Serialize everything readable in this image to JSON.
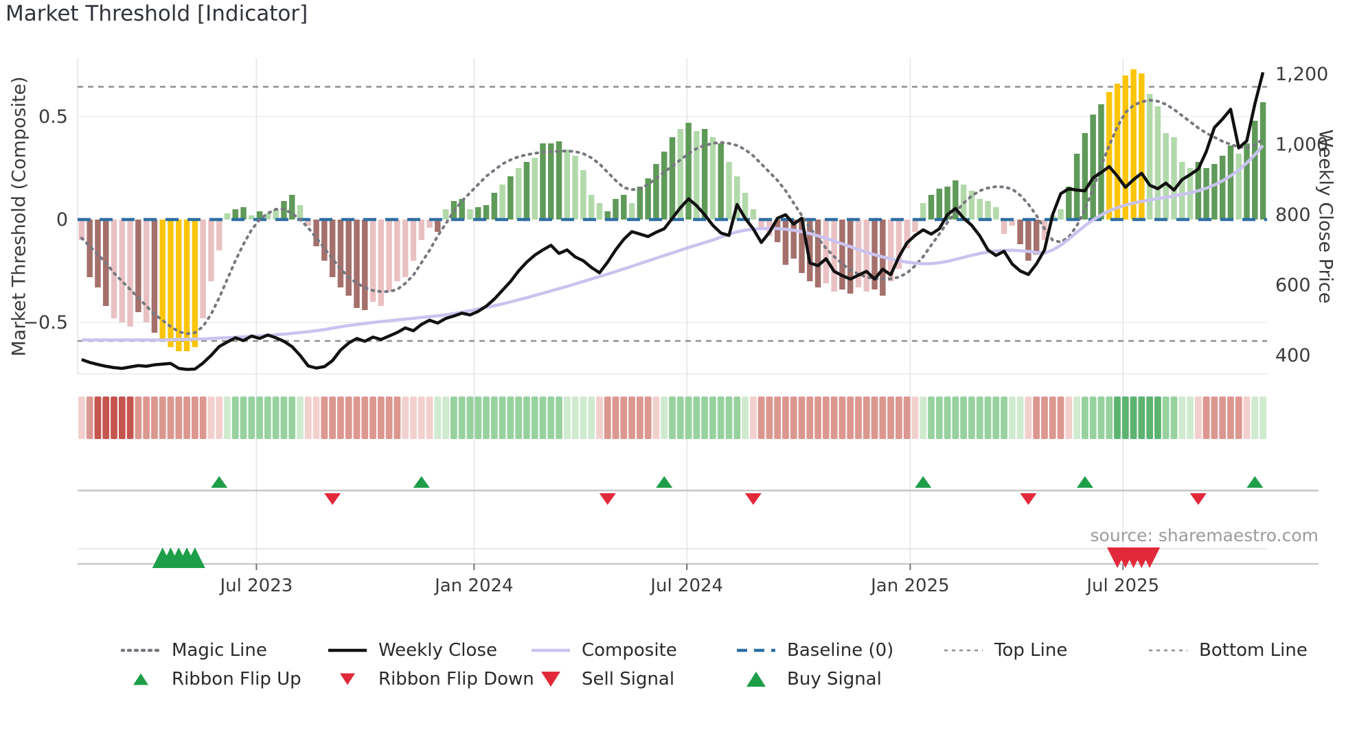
{
  "page": {
    "title": "Market Threshold [Indicator]",
    "source": "source: sharemaestro.com"
  },
  "chart_data": {
    "type": "combo",
    "title": "Market Threshold [Indicator]",
    "left_axis": {
      "label": "Market Threshold (Composite)",
      "ticks": [
        0.5,
        0,
        -0.5
      ],
      "tick_labels": [
        "0.5",
        "0",
        "−0.5"
      ],
      "range": [
        -0.75,
        0.78
      ],
      "grid": [
        0.5,
        -0.5
      ]
    },
    "right_axis": {
      "label": "Weekly Close Price",
      "ticks": [
        1200,
        1000,
        800,
        600,
        400
      ],
      "tick_labels": [
        "1,200",
        "1,000",
        "800",
        "600",
        "400"
      ],
      "range": [
        345,
        1250
      ]
    },
    "x_axis": {
      "tick_labels": [
        "Jul 2023",
        "Jan 2024",
        "Jul 2024",
        "Jan 2025",
        "Jul 2025"
      ],
      "tick_indices": [
        22.1,
        49.0,
        75.3,
        102.9,
        129.2
      ],
      "n_points": 147,
      "grid": true
    },
    "thresholds": {
      "baseline": 0,
      "top_line": 0.645,
      "bottom_line": -0.59
    },
    "histogram": {
      "name": "Market Threshold (Composite) histogram",
      "values": [
        -0.1,
        -0.28,
        -0.33,
        -0.42,
        -0.48,
        -0.5,
        -0.52,
        -0.45,
        -0.5,
        -0.55,
        -0.58,
        -0.62,
        -0.64,
        -0.64,
        -0.62,
        -0.48,
        -0.3,
        -0.15,
        0.03,
        0.05,
        0.06,
        0.02,
        0.04,
        0.03,
        0.05,
        0.09,
        0.12,
        0.07,
        -0.03,
        -0.13,
        -0.2,
        -0.28,
        -0.33,
        -0.37,
        -0.43,
        -0.44,
        -0.4,
        -0.42,
        -0.35,
        -0.3,
        -0.28,
        -0.2,
        -0.1,
        -0.04,
        -0.06,
        0.05,
        0.09,
        0.1,
        0.05,
        0.06,
        0.07,
        0.13,
        0.17,
        0.21,
        0.25,
        0.28,
        0.3,
        0.37,
        0.37,
        0.38,
        0.34,
        0.31,
        0.24,
        0.12,
        0.08,
        0.04,
        0.1,
        0.12,
        0.08,
        0.16,
        0.2,
        0.27,
        0.33,
        0.4,
        0.44,
        0.47,
        0.43,
        0.44,
        0.4,
        0.37,
        0.28,
        0.21,
        0.13,
        0.05,
        -0.04,
        -0.08,
        -0.11,
        -0.22,
        -0.19,
        -0.26,
        -0.3,
        -0.33,
        -0.31,
        -0.35,
        -0.34,
        -0.36,
        -0.33,
        -0.35,
        -0.34,
        -0.37,
        -0.3,
        -0.24,
        -0.14,
        -0.06,
        0.08,
        0.12,
        0.15,
        0.16,
        0.19,
        0.17,
        0.14,
        0.1,
        0.09,
        0.06,
        -0.07,
        -0.03,
        -0.12,
        -0.2,
        -0.17,
        -0.1,
        0.02,
        0.05,
        0.16,
        0.32,
        0.42,
        0.51,
        0.56,
        0.62,
        0.66,
        0.7,
        0.73,
        0.71,
        0.61,
        0.55,
        0.42,
        0.4,
        0.28,
        0.25,
        0.28,
        0.25,
        0.27,
        0.31,
        0.36,
        0.32,
        0.37,
        0.48,
        0.57
      ],
      "shades": [
        "l",
        "d",
        "d",
        "d",
        "l",
        "l",
        "l",
        "d",
        "l",
        "d",
        "y",
        "y",
        "y",
        "y",
        "y",
        "l",
        "l",
        "l",
        "l",
        "d",
        "d",
        "l",
        "d",
        "l",
        "l",
        "d",
        "d",
        "l",
        "l",
        "d",
        "d",
        "d",
        "d",
        "d",
        "d",
        "d",
        "l",
        "l",
        "l",
        "l",
        "l",
        "l",
        "l",
        "l",
        "d",
        "l",
        "d",
        "d",
        "l",
        "d",
        "d",
        "d",
        "l",
        "d",
        "l",
        "d",
        "l",
        "d",
        "d",
        "d",
        "l",
        "l",
        "l",
        "l",
        "l",
        "d",
        "d",
        "d",
        "l",
        "d",
        "d",
        "d",
        "d",
        "d",
        "l",
        "d",
        "l",
        "d",
        "l",
        "d",
        "l",
        "l",
        "l",
        "l",
        "l",
        "l",
        "d",
        "d",
        "d",
        "d",
        "d",
        "d",
        "l",
        "l",
        "d",
        "d",
        "l",
        "l",
        "d",
        "d",
        "l",
        "l",
        "l",
        "l",
        "l",
        "d",
        "d",
        "d",
        "d",
        "l",
        "l",
        "l",
        "l",
        "l",
        "l",
        "l",
        "d",
        "d",
        "d",
        "l",
        "l",
        "l",
        "d",
        "d",
        "d",
        "d",
        "d",
        "y",
        "y",
        "y",
        "y",
        "y",
        "l",
        "l",
        "l",
        "l",
        "l",
        "l",
        "d",
        "d",
        "d",
        "d",
        "d",
        "l",
        "d",
        "d",
        "d"
      ]
    },
    "weekly_close": [
      388,
      380,
      374,
      369,
      365,
      363,
      367,
      371,
      369,
      373,
      375,
      377,
      363,
      360,
      361,
      378,
      400,
      425,
      438,
      450,
      442,
      455,
      448,
      458,
      450,
      440,
      425,
      400,
      370,
      364,
      368,
      385,
      415,
      435,
      448,
      440,
      452,
      445,
      455,
      465,
      478,
      470,
      488,
      500,
      492,
      505,
      512,
      520,
      515,
      525,
      540,
      560,
      585,
      610,
      640,
      665,
      685,
      700,
      713,
      690,
      700,
      680,
      669,
      650,
      635,
      665,
      700,
      730,
      752,
      745,
      738,
      750,
      760,
      790,
      820,
      845,
      826,
      800,
      770,
      748,
      741,
      829,
      790,
      760,
      721,
      750,
      790,
      800,
      773,
      790,
      663,
      655,
      675,
      639,
      627,
      617,
      628,
      639,
      617,
      645,
      629,
      680,
      720,
      741,
      757,
      745,
      760,
      800,
      818,
      790,
      770,
      740,
      700,
      684,
      696,
      660,
      640,
      630,
      660,
      700,
      800,
      860,
      874,
      870,
      868,
      905,
      920,
      937,
      910,
      878,
      900,
      918,
      884,
      874,
      890,
      870,
      900,
      914,
      930,
      980,
      1048,
      1072,
      1100,
      990,
      1010,
      1115,
      1205
    ],
    "composite": [
      -0.585,
      -0.585,
      -0.585,
      -0.585,
      -0.585,
      -0.585,
      -0.585,
      -0.585,
      -0.585,
      -0.585,
      -0.585,
      -0.584,
      -0.583,
      -0.582,
      -0.581,
      -0.58,
      -0.578,
      -0.576,
      -0.574,
      -0.572,
      -0.57,
      -0.568,
      -0.566,
      -0.563,
      -0.56,
      -0.557,
      -0.553,
      -0.549,
      -0.545,
      -0.54,
      -0.535,
      -0.528,
      -0.521,
      -0.515,
      -0.51,
      -0.505,
      -0.5,
      -0.496,
      -0.492,
      -0.488,
      -0.484,
      -0.48,
      -0.476,
      -0.472,
      -0.468,
      -0.463,
      -0.457,
      -0.45,
      -0.443,
      -0.435,
      -0.427,
      -0.419,
      -0.41,
      -0.4,
      -0.39,
      -0.38,
      -0.369,
      -0.358,
      -0.347,
      -0.336,
      -0.325,
      -0.313,
      -0.301,
      -0.289,
      -0.277,
      -0.265,
      -0.253,
      -0.24,
      -0.227,
      -0.214,
      -0.201,
      -0.188,
      -0.175,
      -0.162,
      -0.149,
      -0.136,
      -0.124,
      -0.112,
      -0.1,
      -0.085,
      -0.072,
      -0.06,
      -0.052,
      -0.047,
      -0.044,
      -0.043,
      -0.044,
      -0.047,
      -0.052,
      -0.059,
      -0.068,
      -0.079,
      -0.091,
      -0.104,
      -0.118,
      -0.132,
      -0.146,
      -0.159,
      -0.171,
      -0.182,
      -0.192,
      -0.2,
      -0.207,
      -0.212,
      -0.215,
      -0.214,
      -0.21,
      -0.203,
      -0.194,
      -0.184,
      -0.174,
      -0.165,
      -0.158,
      -0.153,
      -0.15,
      -0.149,
      -0.151,
      -0.155,
      -0.16,
      -0.163,
      -0.148,
      -0.125,
      -0.095,
      -0.062,
      -0.03,
      -0.002,
      0.022,
      0.042,
      0.058,
      0.07,
      0.08,
      0.088,
      0.095,
      0.102,
      0.108,
      0.115,
      0.122,
      0.13,
      0.14,
      0.152,
      0.168,
      0.188,
      0.212,
      0.24,
      0.275,
      0.315,
      0.36
    ],
    "magic_line": [
      -0.09,
      -0.13,
      -0.17,
      -0.21,
      -0.26,
      -0.3,
      -0.34,
      -0.38,
      -0.42,
      -0.46,
      -0.49,
      -0.52,
      -0.545,
      -0.555,
      -0.55,
      -0.52,
      -0.46,
      -0.38,
      -0.29,
      -0.2,
      -0.12,
      -0.05,
      0.0,
      0.03,
      0.05,
      0.05,
      0.03,
      0.0,
      -0.04,
      -0.09,
      -0.14,
      -0.19,
      -0.24,
      -0.28,
      -0.31,
      -0.33,
      -0.345,
      -0.35,
      -0.35,
      -0.34,
      -0.31,
      -0.27,
      -0.21,
      -0.15,
      -0.08,
      -0.02,
      0.04,
      0.09,
      0.13,
      0.17,
      0.21,
      0.24,
      0.27,
      0.29,
      0.305,
      0.315,
      0.322,
      0.327,
      0.33,
      0.332,
      0.333,
      0.33,
      0.32,
      0.3,
      0.27,
      0.23,
      0.19,
      0.155,
      0.145,
      0.15,
      0.17,
      0.2,
      0.23,
      0.26,
      0.29,
      0.32,
      0.345,
      0.36,
      0.37,
      0.375,
      0.37,
      0.36,
      0.34,
      0.31,
      0.27,
      0.23,
      0.19,
      0.14,
      0.08,
      0.02,
      -0.04,
      -0.09,
      -0.14,
      -0.18,
      -0.215,
      -0.245,
      -0.265,
      -0.28,
      -0.287,
      -0.29,
      -0.288,
      -0.28,
      -0.26,
      -0.225,
      -0.18,
      -0.125,
      -0.07,
      -0.015,
      0.035,
      0.08,
      0.115,
      0.14,
      0.153,
      0.16,
      0.158,
      0.148,
      0.118,
      0.075,
      0.02,
      -0.045,
      -0.1,
      -0.11,
      -0.085,
      -0.03,
      0.05,
      0.15,
      0.26,
      0.36,
      0.45,
      0.52,
      0.555,
      0.572,
      0.58,
      0.575,
      0.56,
      0.535,
      0.505,
      0.475,
      0.445,
      0.42,
      0.4,
      0.38,
      0.365,
      0.352,
      0.35,
      0.362,
      0.39
    ],
    "ribbon": [
      "r1",
      "r2",
      "r3",
      "r3",
      "r3",
      "r3",
      "r3",
      "r2",
      "r2",
      "r2",
      "r2",
      "r2",
      "r2",
      "r2",
      "r2",
      "r2",
      "r1",
      "r1",
      "g1",
      "g2",
      "g2",
      "g2",
      "g2",
      "g2",
      "g2",
      "g2",
      "g2",
      "g1",
      "r1",
      "r1",
      "r2",
      "r2",
      "r2",
      "r2",
      "r2",
      "r2",
      "r2",
      "r2",
      "r2",
      "r2",
      "r1",
      "r1",
      "r1",
      "r1",
      "g1",
      "g1",
      "g2",
      "g2",
      "g2",
      "g2",
      "g2",
      "g2",
      "g2",
      "g2",
      "g2",
      "g2",
      "g2",
      "g2",
      "g2",
      "g2",
      "g1",
      "g1",
      "g1",
      "g1",
      "r1",
      "r2",
      "r2",
      "r2",
      "r2",
      "r2",
      "r2",
      "r1",
      "g1",
      "g2",
      "g2",
      "g2",
      "g2",
      "g2",
      "g2",
      "g2",
      "g2",
      "g2",
      "g1",
      "r1",
      "r2",
      "r2",
      "r2",
      "r2",
      "r2",
      "r2",
      "r2",
      "r2",
      "r2",
      "r2",
      "r2",
      "r2",
      "r2",
      "r2",
      "r2",
      "r2",
      "r2",
      "r2",
      "r2",
      "r1",
      "g1",
      "g2",
      "g2",
      "g2",
      "g2",
      "g2",
      "g2",
      "g2",
      "g2",
      "g2",
      "g2",
      "g1",
      "g1",
      "r1",
      "r2",
      "r2",
      "r2",
      "r2",
      "r1",
      "g1",
      "g2",
      "g2",
      "g2",
      "g2",
      "g3",
      "g3",
      "g3",
      "g3",
      "g3",
      "g3",
      "g2",
      "g2",
      "g1",
      "g1",
      "r1",
      "r2",
      "r2",
      "r2",
      "r2",
      "r2",
      "r1",
      "g1",
      "g1"
    ],
    "signals": {
      "ribbon_flip_up": [
        17,
        42,
        72,
        104,
        124,
        145
      ],
      "ribbon_flip_down": [
        31,
        65,
        83,
        117,
        138
      ],
      "buy": [
        10,
        11,
        12,
        13,
        14
      ],
      "sell": [
        128,
        129,
        130,
        131,
        132
      ]
    },
    "legend": {
      "items": [
        {
          "label": "Magic Line",
          "type": "dotted",
          "color": "#77787f"
        },
        {
          "label": "Weekly Close",
          "type": "solid",
          "color": "#111111"
        },
        {
          "label": "Composite",
          "type": "solid",
          "color": "#c9c3ef"
        },
        {
          "label": "Baseline (0)",
          "type": "dashed",
          "color": "#2e6fa3"
        },
        {
          "label": "Top Line",
          "type": "dashed-fine",
          "color": "#8f8f8f"
        },
        {
          "label": "Bottom Line",
          "type": "dashed-fine",
          "color": "#8f8f8f"
        },
        {
          "label": "Ribbon Flip Up",
          "type": "triangle-up",
          "color": "#1f9e4a"
        },
        {
          "label": "Ribbon Flip Down",
          "type": "triangle-down",
          "color": "#e1293b"
        },
        {
          "label": "Sell Signal",
          "type": "triangle-down",
          "color": "#e1293b"
        },
        {
          "label": "Buy Signal",
          "type": "triangle-up",
          "color": "#1f9e4a"
        }
      ]
    },
    "colors": {
      "hist_pos_dark": "#5f9a59",
      "hist_pos_light": "#b2d9aa",
      "hist_neg_dark": "#a5706b",
      "hist_neg_light": "#eac1c3",
      "hist_extreme_yellow": "#fcc50c",
      "weekly_close": "#111111",
      "composite": "#c9c3ef",
      "magic_line": "#77787f",
      "baseline": "#2e6fa3",
      "threshold_lines": "#8f8f8f",
      "signal_green": "#1f9e4a",
      "signal_red": "#e1293b",
      "ribbon_r1": "#f2d0cd",
      "ribbon_r2": "#dc9791",
      "ribbon_r3": "#c5554f",
      "ribbon_g1": "#cfeacf",
      "ribbon_g2": "#97d29e",
      "ribbon_g3": "#5cb470"
    }
  }
}
